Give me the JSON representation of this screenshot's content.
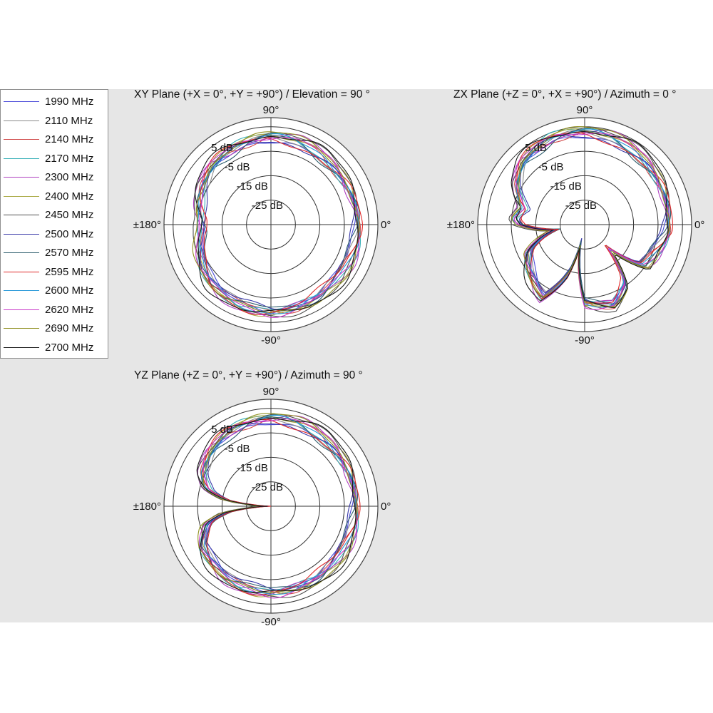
{
  "legend": {
    "entries": [
      {
        "label": "1990 MHz",
        "color": "#4a4ad8"
      },
      {
        "label": "2110 MHz",
        "color": "#8a8a8a"
      },
      {
        "label": "2140 MHz",
        "color": "#d04848"
      },
      {
        "label": "2170 MHz",
        "color": "#38b0b8"
      },
      {
        "label": "2300 MHz",
        "color": "#b040c0"
      },
      {
        "label": "2400 MHz",
        "color": "#a8a840"
      },
      {
        "label": "2450 MHz",
        "color": "#505050"
      },
      {
        "label": "2500 MHz",
        "color": "#3838a8"
      },
      {
        "label": "2570 MHz",
        "color": "#2c5c6c"
      },
      {
        "label": "2595 MHz",
        "color": "#e02828"
      },
      {
        "label": "2600 MHz",
        "color": "#2898d8"
      },
      {
        "label": "2620 MHz",
        "color": "#c838c8"
      },
      {
        "label": "2690 MHz",
        "color": "#909020"
      },
      {
        "label": "2700 MHz",
        "color": "#181818"
      }
    ]
  },
  "chart_data": [
    {
      "type": "polar",
      "title": "XY Plane (+X = 0°, +Y = +90°) / Elevation = 90 °",
      "angle_labels": {
        "top": "90°",
        "bottom": "-90°",
        "left": "±180°",
        "right": "0°"
      },
      "radial_labels": [
        "5 dB",
        "-5 dB",
        "-15 dB",
        "-25 dB"
      ],
      "radial_range_db": [
        -35,
        5
      ],
      "series_note_names": "legend",
      "profile_db": [
        [
          0,
          0.5
        ],
        [
          45,
          0
        ],
        [
          90,
          1
        ],
        [
          135,
          -1
        ],
        [
          160,
          -4
        ],
        [
          175,
          -6
        ],
        [
          180,
          -6
        ],
        [
          185,
          -6
        ],
        [
          200,
          -4
        ],
        [
          225,
          -1
        ],
        [
          270,
          1
        ],
        [
          315,
          0
        ],
        [
          360,
          0.5
        ]
      ]
    },
    {
      "type": "polar",
      "title": "ZX Plane (+Z = 0°, +X = +90°) / Azimuth = 0 °",
      "angle_labels": {
        "top": "90°",
        "bottom": "-90°",
        "left": "±180°",
        "right": "0°"
      },
      "radial_labels": [
        "5 dB",
        "-5 dB",
        "-15 dB",
        "-25 dB"
      ],
      "radial_range_db": [
        -35,
        5
      ],
      "profile_db": [
        [
          0,
          -1
        ],
        [
          20,
          0
        ],
        [
          45,
          1
        ],
        [
          70,
          2
        ],
        [
          90,
          3
        ],
        [
          110,
          3
        ],
        [
          135,
          1
        ],
        [
          150,
          -3
        ],
        [
          165,
          -9
        ],
        [
          175,
          -6
        ],
        [
          180,
          -8
        ],
        [
          190,
          -22
        ],
        [
          205,
          -10
        ],
        [
          220,
          -6
        ],
        [
          240,
          -1
        ],
        [
          252,
          -14
        ],
        [
          258,
          -26
        ],
        [
          270,
          -3
        ],
        [
          290,
          0
        ],
        [
          305,
          -6
        ],
        [
          315,
          -22
        ],
        [
          325,
          -6
        ],
        [
          340,
          -4
        ],
        [
          355,
          -1
        ],
        [
          360,
          -1
        ]
      ]
    },
    {
      "type": "polar",
      "title": "YZ Plane (+Z = 0°, +Y = +90°) / Azimuth = 90 °",
      "angle_labels": {
        "top": "90°",
        "bottom": "-90°",
        "left": "±180°",
        "right": "0°"
      },
      "radial_labels": [
        "5 dB",
        "-5 dB",
        "-15 dB",
        "-25 dB"
      ],
      "radial_range_db": [
        -35,
        5
      ],
      "profile_db": [
        [
          0,
          -0.5
        ],
        [
          30,
          0
        ],
        [
          60,
          0.5
        ],
        [
          90,
          1
        ],
        [
          120,
          0
        ],
        [
          140,
          -2
        ],
        [
          155,
          -4
        ],
        [
          165,
          -8
        ],
        [
          172,
          -16
        ],
        [
          176,
          -27
        ],
        [
          180,
          -33
        ],
        [
          184,
          -27
        ],
        [
          188,
          -16
        ],
        [
          195,
          -8
        ],
        [
          210,
          -3
        ],
        [
          240,
          -0.5
        ],
        [
          270,
          0.5
        ],
        [
          300,
          0
        ],
        [
          330,
          -0.5
        ],
        [
          360,
          -0.5
        ]
      ]
    }
  ]
}
